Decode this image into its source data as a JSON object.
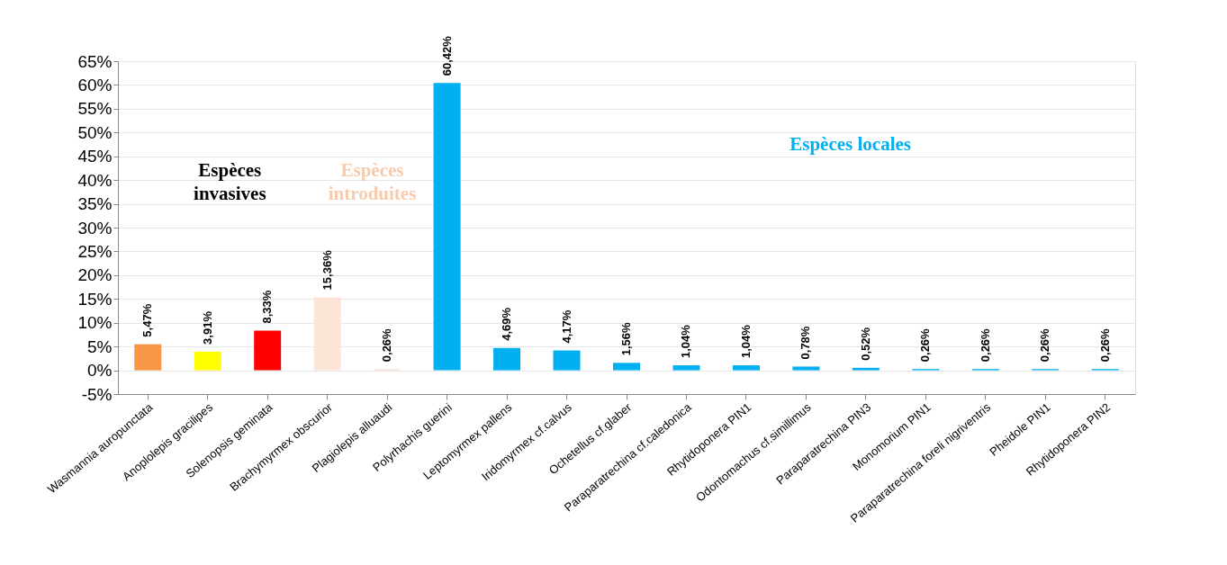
{
  "chart_data": {
    "type": "bar",
    "categories": [
      "Wasmannia auropunctata",
      "Anoplolepis gracilipes",
      "Solenopsis geminata",
      "Brachymyrmex obscurior",
      "Plagiolepis alluaudi",
      "Polyrhachis guerini",
      "Leptomyrmex pallens",
      "Iridomyrmex cf.calvus",
      "Ochetellus cf.glaber",
      "Paraparatrechina cf.caledonica",
      "Rhytidoponera PIN1",
      "Odontomachus cf.simillimus",
      "Paraparatrechina PIN3",
      "Monomorium PIN1",
      "Paraparatrechina foreli nigriventris",
      "Pheidole PIN1",
      "Rhytidoponera PIN2"
    ],
    "values": [
      5.47,
      3.91,
      8.33,
      15.36,
      0.26,
      60.42,
      4.69,
      4.17,
      1.56,
      1.04,
      1.04,
      0.78,
      0.52,
      0.26,
      0.26,
      0.26,
      0.26
    ],
    "value_labels": [
      "5,47%",
      "3,91%",
      "8,33%",
      "15,36%",
      "0,26%",
      "60,42%",
      "4,69%",
      "4,17%",
      "1,56%",
      "1,04%",
      "1,04%",
      "0,78%",
      "0,52%",
      "0,26%",
      "0,26%",
      "0,26%",
      "0,26%"
    ],
    "colors": [
      "#f79646",
      "#ffff00",
      "#ff0000",
      "#fce4d6",
      "#fce4d6",
      "#00b0f0",
      "#00b0f0",
      "#00b0f0",
      "#00b0f0",
      "#00b0f0",
      "#00b0f0",
      "#00b0f0",
      "#00b0f0",
      "#00b0f0",
      "#00b0f0",
      "#00b0f0",
      "#00b0f0"
    ],
    "ylim": [
      -5,
      65
    ],
    "yticks": [
      {
        "value": -5,
        "label": "-5%"
      },
      {
        "value": 0,
        "label": "0%"
      },
      {
        "value": 5,
        "label": "5%"
      },
      {
        "value": 10,
        "label": "10%"
      },
      {
        "value": 15,
        "label": "15%"
      },
      {
        "value": 20,
        "label": "20%"
      },
      {
        "value": 25,
        "label": "25%"
      },
      {
        "value": 30,
        "label": "30%"
      },
      {
        "value": 35,
        "label": "35%"
      },
      {
        "value": 40,
        "label": "40%"
      },
      {
        "value": 45,
        "label": "45%"
      },
      {
        "value": 50,
        "label": "50%"
      },
      {
        "value": 55,
        "label": "55%"
      },
      {
        "value": 60,
        "label": "60%"
      },
      {
        "value": 65,
        "label": "65%"
      }
    ],
    "annotations": [
      "Espèces\ninvasives",
      "Espèces\nintroduites",
      "Espèces locales"
    ],
    "grid": "y"
  }
}
